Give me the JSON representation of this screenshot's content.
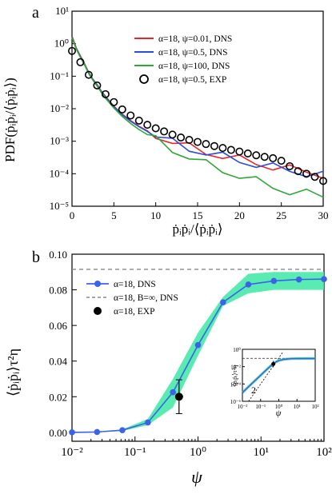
{
  "chart_data": [
    {
      "type": "line",
      "panel_label": "a",
      "ylabel": "PDF(ṗᵢṗᵢ/⟨ṗᵢṗᵢ⟩)",
      "xlabel": "ṗᵢṗᵢ/⟨ṗᵢṗᵢ⟩",
      "xlim": [
        0,
        30
      ],
      "ylim_log10": [
        -5,
        1
      ],
      "y_scale": "log",
      "x_ticks": [
        "0",
        "5",
        "10",
        "15",
        "20",
        "25",
        "30"
      ],
      "y_ticks": [
        "10⁻⁵",
        "10⁻⁴",
        "10⁻³",
        "10⁻²",
        "10⁻¹",
        "10⁰",
        "10¹"
      ],
      "legend_position": "top-right",
      "series": [
        {
          "name": "α=18, ψ=0.01, DNS",
          "color": "#e8262a",
          "style": "line",
          "x": [
            0,
            0.5,
            1,
            1.5,
            2,
            2.5,
            3,
            3.5,
            4,
            5,
            6,
            7,
            8,
            9,
            10,
            12,
            14,
            16,
            18,
            20,
            22,
            24,
            26,
            28,
            30
          ],
          "y": [
            1.7,
            0.75,
            0.42,
            0.24,
            0.13,
            0.08,
            0.055,
            0.035,
            0.024,
            0.012,
            0.0068,
            0.0043,
            0.0029,
            0.0021,
            0.0016,
            0.00098,
            0.00066,
            0.00048,
            0.00036,
            0.00028,
            0.00022,
            0.00017,
            0.00014,
            0.00012,
            0.0001
          ]
        },
        {
          "name": "α=18, ψ=0.5, DNS",
          "color": "#2a4fd6",
          "style": "line",
          "x": [
            0,
            0.5,
            1,
            1.5,
            2,
            2.5,
            3,
            3.5,
            4,
            5,
            6,
            7,
            8,
            9,
            10,
            12,
            14,
            16,
            18,
            20,
            22,
            24,
            26,
            28,
            30
          ],
          "y": [
            1.6,
            0.72,
            0.4,
            0.23,
            0.125,
            0.078,
            0.053,
            0.034,
            0.023,
            0.0115,
            0.0065,
            0.0041,
            0.0028,
            0.002,
            0.0015,
            0.00092,
            0.00062,
            0.00045,
            0.00034,
            0.00026,
            0.0002,
            0.00016,
            0.00013,
            0.00011,
            9e-05
          ]
        },
        {
          "name": "α=18, ψ=100, DNS",
          "color": "#2ea836",
          "style": "line",
          "x": [
            0,
            0.5,
            1,
            1.5,
            2,
            2.5,
            3,
            3.5,
            4,
            5,
            6,
            7,
            8,
            9,
            10,
            12,
            14,
            16,
            18,
            20,
            22,
            24,
            26,
            28,
            30
          ],
          "y": [
            1.5,
            0.7,
            0.38,
            0.22,
            0.12,
            0.075,
            0.05,
            0.032,
            0.021,
            0.0105,
            0.0058,
            0.0035,
            0.0023,
            0.0016,
            0.0011,
            0.00058,
            0.00033,
            0.0002,
            0.00013,
            9e-05,
            6e-05,
            4e-05,
            3e-05,
            2.5e-05,
            2e-05
          ]
        },
        {
          "name": "α=18, ψ=0.5, EXP",
          "color": "#000000",
          "style": "open-circle",
          "x": [
            0,
            1,
            2,
            3,
            4,
            5,
            6,
            7,
            8,
            9,
            10,
            11,
            12,
            13,
            14,
            15,
            16,
            17,
            18,
            19,
            20,
            21,
            22,
            23,
            24,
            25,
            26,
            27,
            28,
            29,
            30
          ],
          "y": [
            0.6,
            0.27,
            0.11,
            0.052,
            0.028,
            0.016,
            0.0095,
            0.0062,
            0.0043,
            0.0032,
            0.0025,
            0.002,
            0.0016,
            0.0013,
            0.0011,
            0.00095,
            0.00082,
            0.00071,
            0.00062,
            0.00054,
            0.00048,
            0.00042,
            0.00037,
            0.00033,
            0.0003,
            0.00025,
            0.00017,
            0.00012,
            0.0001,
            8e-05,
            6e-05
          ]
        }
      ]
    },
    {
      "type": "line",
      "panel_label": "b",
      "ylabel": "⟨ṗᵢṗᵢ⟩τ²η",
      "xlabel": "ψ",
      "x_scale": "log",
      "xlim_log10": [
        -2,
        2
      ],
      "ylim": [
        -0.005,
        0.1
      ],
      "x_ticks": [
        "10⁻²",
        "10⁻¹",
        "10⁰",
        "10¹",
        "10²"
      ],
      "y_ticks": [
        "0.00",
        "0.02",
        "0.04",
        "0.06",
        "0.08",
        "0.10"
      ],
      "legend_position": "top-left",
      "series": [
        {
          "name": "α=18, DNS",
          "color": "#3a63e8",
          "style": "line-circle",
          "x": [
            0.01,
            0.025,
            0.063,
            0.16,
            0.4,
            1,
            2.5,
            6.3,
            16,
            40,
            100
          ],
          "y": [
            0.0,
            0.0002,
            0.0012,
            0.0055,
            0.0225,
            0.049,
            0.073,
            0.083,
            0.085,
            0.0858,
            0.086
          ]
        },
        {
          "name": "α=18, B=∞, DNS",
          "color": "#888888",
          "style": "dashed",
          "x": [
            0.01,
            100
          ],
          "y": [
            0.0915,
            0.0915
          ]
        },
        {
          "name": "α=18, EXP",
          "color": "#000000",
          "style": "filled-circle",
          "x": [
            0.5
          ],
          "y": [
            0.02
          ],
          "y_error": [
            0.0095
          ],
          "x_error_range": [
            0.45,
            0.58
          ]
        }
      ],
      "band": {
        "color": "#3de8a4",
        "x": [
          0.01,
          0.025,
          0.063,
          0.16,
          0.4,
          1,
          2.5,
          6.3,
          16,
          40,
          100
        ],
        "lower": [
          0.0,
          0.0001,
          0.0008,
          0.004,
          0.014,
          0.043,
          0.071,
          0.078,
          0.08,
          0.08,
          0.08
        ],
        "upper": [
          0.0001,
          0.0003,
          0.0017,
          0.0075,
          0.03,
          0.056,
          0.076,
          0.089,
          0.09,
          0.09,
          0.09
        ]
      },
      "inset": {
        "ylabel": "⟨ṗᵢṗᵢ⟩τ²η",
        "xlabel": "ψ",
        "x_ticks": [
          "10⁻²",
          "10⁻¹",
          "10⁰",
          "10¹",
          "10²"
        ],
        "y_ticks": [
          "10⁻⁶",
          "10⁻⁴",
          "10⁻²",
          "10⁰"
        ],
        "annotation": "2",
        "dns_x": [
          0.01,
          0.02,
          0.05,
          0.1,
          0.2,
          0.4,
          0.7,
          1,
          2,
          5,
          10,
          30,
          100
        ],
        "dns_y": [
          1e-05,
          4e-05,
          0.00025,
          0.001,
          0.004,
          0.015,
          0.035,
          0.05,
          0.07,
          0.083,
          0.085,
          0.086,
          0.086
        ],
        "exp_x": [
          0.5
        ],
        "exp_y": [
          0.02
        ]
      }
    }
  ]
}
